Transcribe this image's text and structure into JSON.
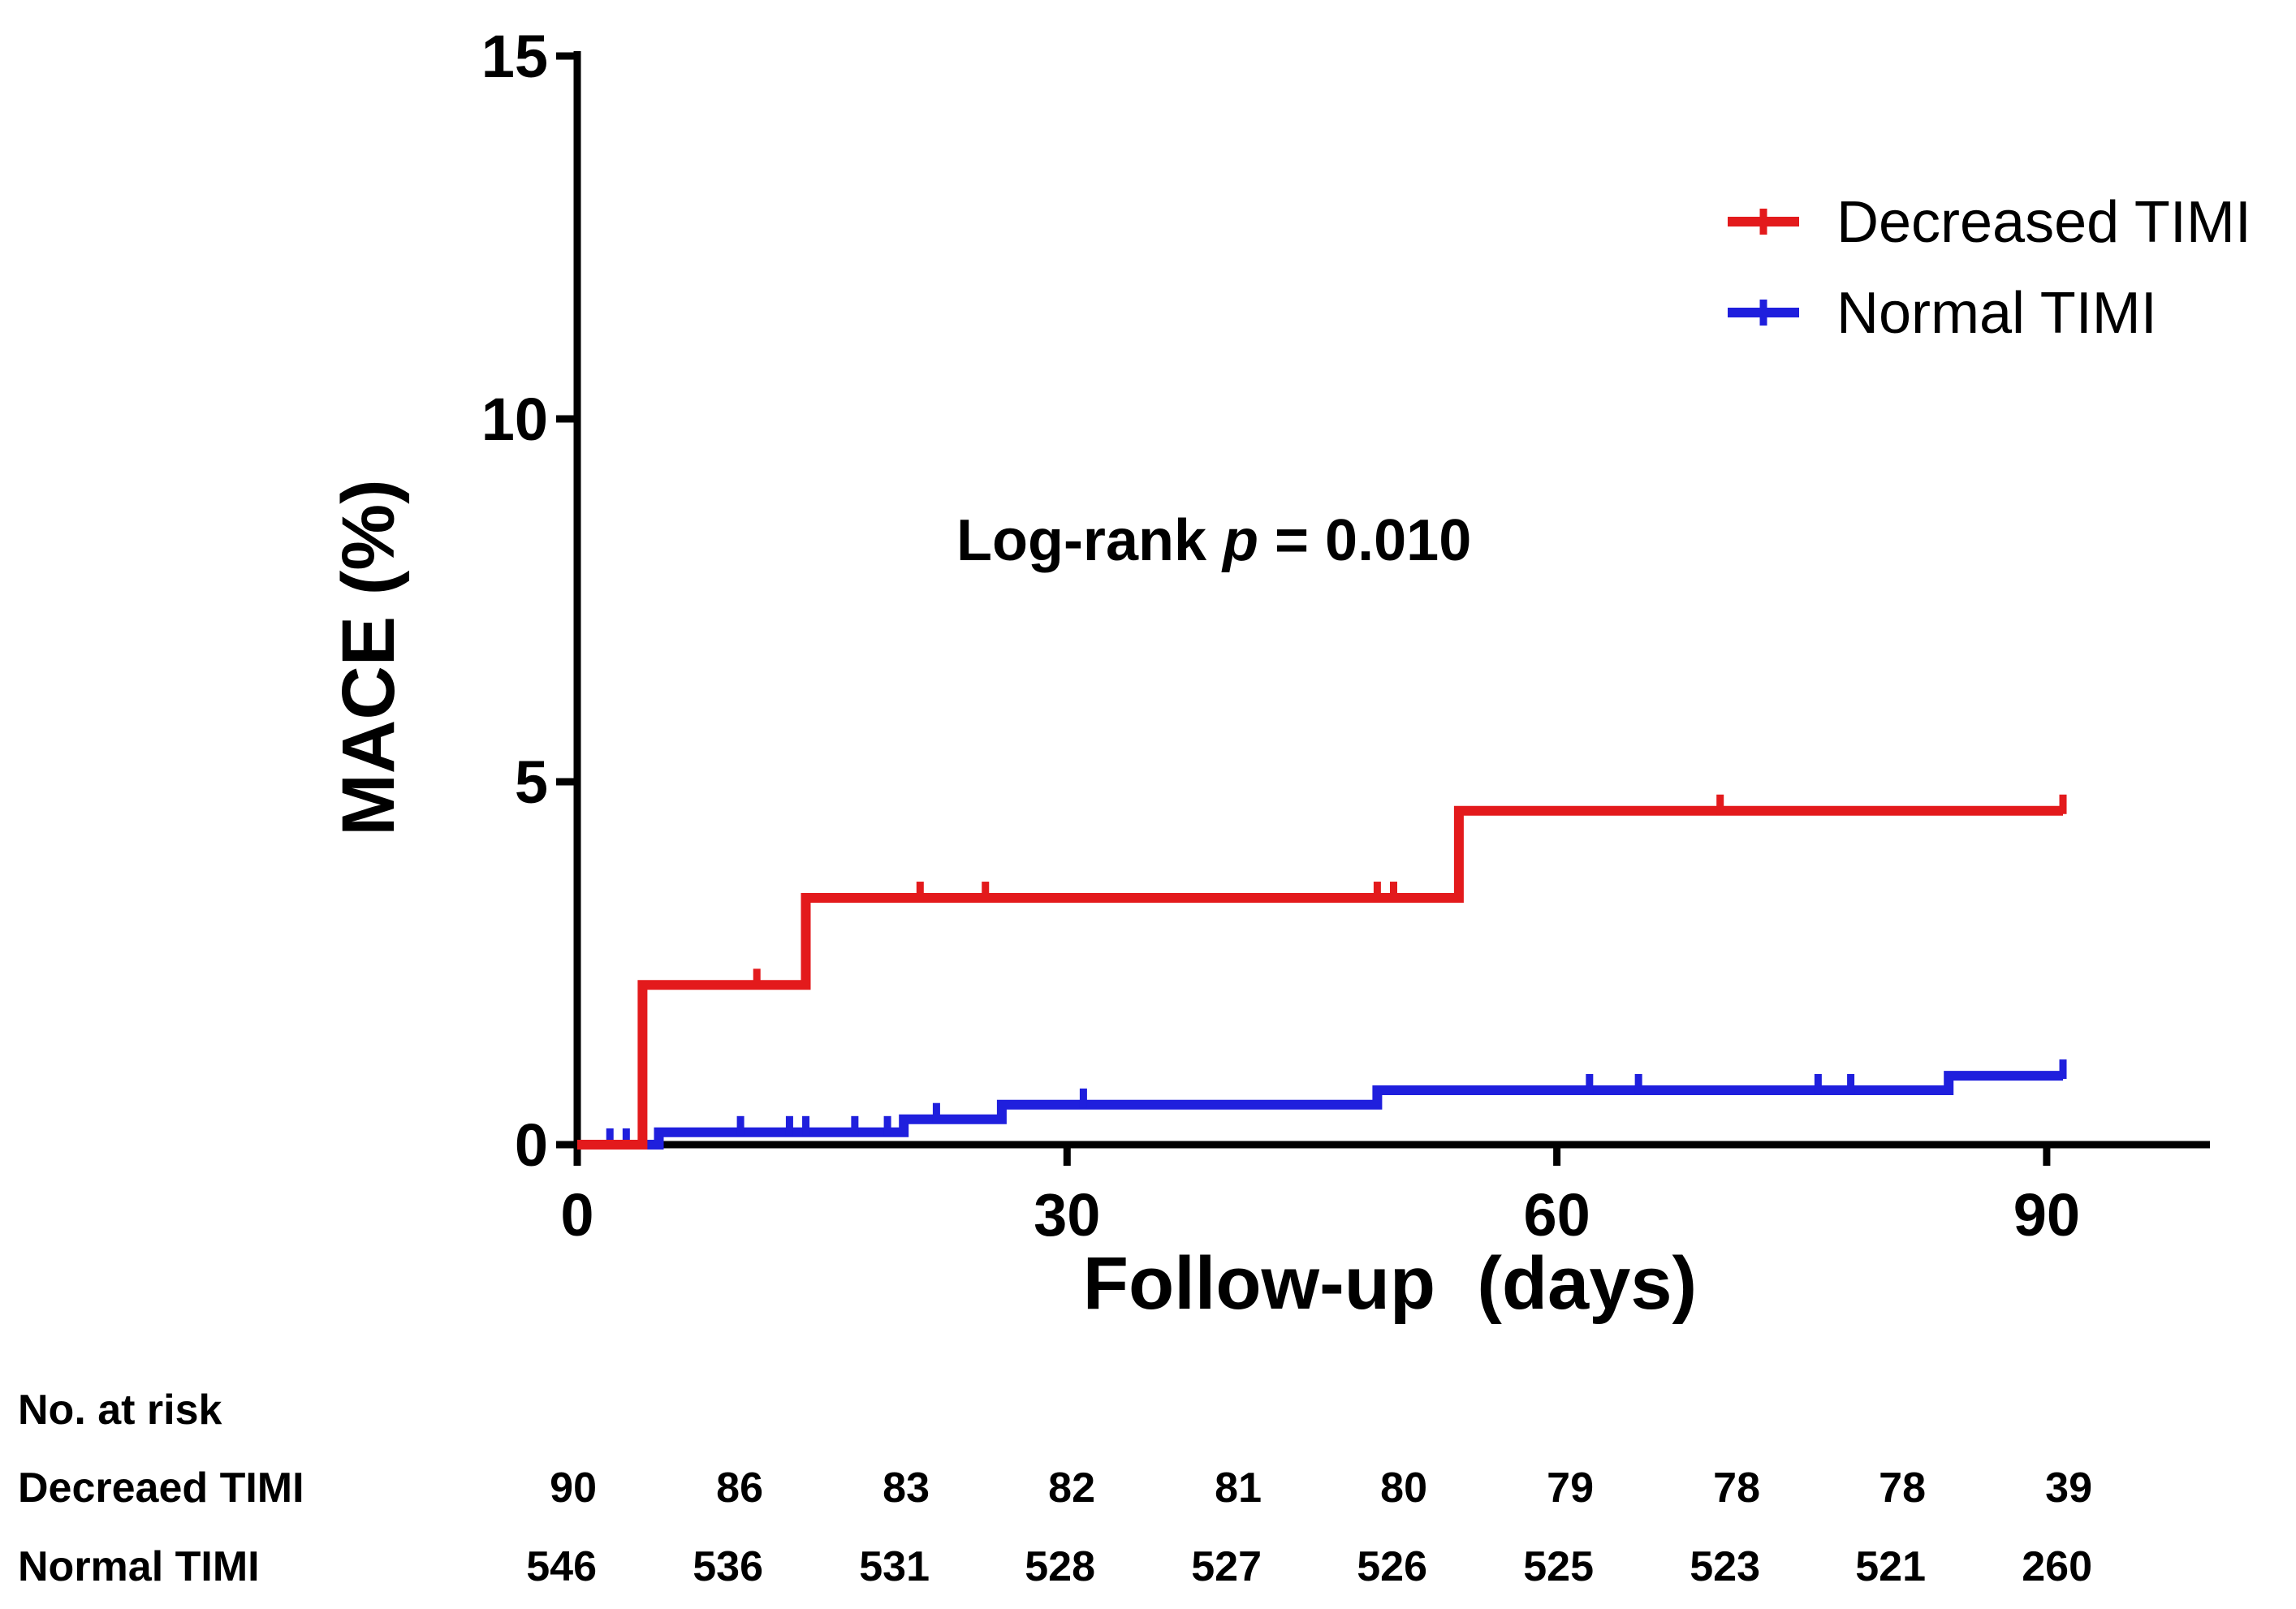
{
  "chart_data": {
    "type": "line",
    "subtype": "kaplan-meier-cumulative-incidence",
    "title": "",
    "xlabel": "Follow-up  (days)",
    "ylabel": "MACE (%)",
    "xlim": [
      0,
      100
    ],
    "ylim": [
      0,
      15
    ],
    "xticks": [
      0,
      30,
      60,
      90
    ],
    "yticks": [
      0,
      5,
      10,
      15
    ],
    "annotation": {
      "prefix": "Log-rank ",
      "italic": "p",
      "suffix": " = 0.010"
    },
    "legend_position": "top-right",
    "series": [
      {
        "name": "Decreased TIMI",
        "color": "#e31a1c",
        "steps": [
          [
            0,
            0
          ],
          [
            4,
            0
          ],
          [
            4,
            2.2
          ],
          [
            14,
            2.2
          ],
          [
            14,
            3.4
          ],
          [
            54,
            3.4
          ],
          [
            54,
            4.6
          ],
          [
            91,
            4.6
          ]
        ],
        "censors": [
          [
            11,
            2.2
          ],
          [
            21,
            3.4
          ],
          [
            25,
            3.4
          ],
          [
            49,
            3.4
          ],
          [
            50,
            3.4
          ],
          [
            70,
            4.6
          ],
          [
            91,
            4.6
          ]
        ]
      },
      {
        "name": "Normal TIMI",
        "color": "#1f1fdd",
        "steps": [
          [
            0,
            0
          ],
          [
            5,
            0
          ],
          [
            5,
            0.17
          ],
          [
            20,
            0.17
          ],
          [
            20,
            0.35
          ],
          [
            26,
            0.35
          ],
          [
            26,
            0.55
          ],
          [
            49,
            0.55
          ],
          [
            49,
            0.75
          ],
          [
            84,
            0.75
          ],
          [
            84,
            0.95
          ],
          [
            91,
            0.95
          ]
        ],
        "censors": [
          [
            2,
            0
          ],
          [
            3,
            0
          ],
          [
            10,
            0.17
          ],
          [
            13,
            0.17
          ],
          [
            14,
            0.17
          ],
          [
            17,
            0.17
          ],
          [
            19,
            0.17
          ],
          [
            22,
            0.35
          ],
          [
            31,
            0.55
          ],
          [
            62,
            0.75
          ],
          [
            65,
            0.75
          ],
          [
            76,
            0.75
          ],
          [
            78,
            0.75
          ],
          [
            91,
            0.95
          ]
        ]
      }
    ],
    "risk_table": {
      "header": "No. at risk",
      "rows": [
        {
          "label": "Decreaed TIMI",
          "values": [
            "90",
            "86",
            "83",
            "82",
            "81",
            "80",
            "79",
            "78",
            "78",
            "39"
          ]
        },
        {
          "label": "Normal TIMI",
          "values": [
            "546",
            "536",
            "531",
            "528",
            "527",
            "526",
            "525",
            "523",
            "521",
            "260"
          ]
        }
      ]
    }
  }
}
